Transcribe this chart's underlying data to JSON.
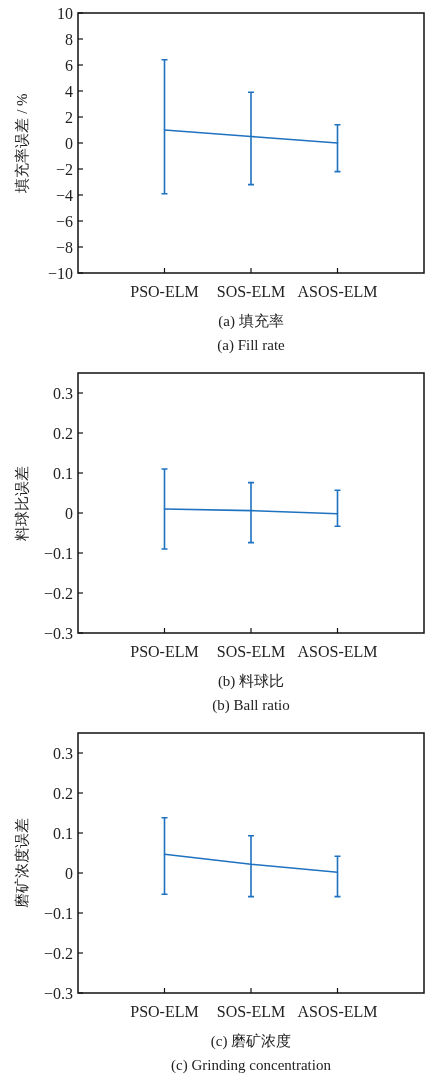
{
  "chart_data": [
    {
      "type": "line",
      "title": "(a)  填充率",
      "subtitle": "(a)  Fill rate",
      "ylabel": "填充率误差 / %",
      "categories": [
        "PSO-ELM",
        "SOS-ELM",
        "ASOS-ELM"
      ],
      "series": [
        {
          "color": "#1f72c0",
          "values": [
            1,
            0.5,
            0
          ],
          "errors": [
            [
              -3.9,
              6.4
            ],
            [
              -3.2,
              3.9
            ],
            [
              -2.2,
              1.4
            ]
          ]
        }
      ],
      "ylim": [
        -10,
        10
      ],
      "yticks": [
        -10,
        -8,
        -6,
        -4,
        -2,
        0,
        2,
        4,
        6,
        8,
        10
      ]
    },
    {
      "type": "line",
      "title": "(b)  料球比",
      "subtitle": "(b)  Ball ratio",
      "ylabel": "料球比误差",
      "categories": [
        "PSO-ELM",
        "SOS-ELM",
        "ASOS-ELM"
      ],
      "series": [
        {
          "color": "#1f72c0",
          "values": [
            0.01,
            0.006,
            -0.002
          ],
          "errors": [
            [
              -0.09,
              0.11
            ],
            [
              -0.074,
              0.076
            ],
            [
              -0.033,
              0.057
            ]
          ]
        }
      ],
      "ylim": [
        -0.3,
        0.35
      ],
      "yticks": [
        -0.3,
        -0.2,
        -0.1,
        0,
        0.1,
        0.2,
        0.3
      ]
    },
    {
      "type": "line",
      "title": "(c)  磨矿浓度",
      "subtitle": "(c)  Grinding concentration",
      "ylabel": "磨矿浓度误差",
      "categories": [
        "PSO-ELM",
        "SOS-ELM",
        "ASOS-ELM"
      ],
      "series": [
        {
          "color": "#1f72c0",
          "values": [
            0.047,
            0.022,
            0.002
          ],
          "errors": [
            [
              -0.053,
              0.138
            ],
            [
              -0.059,
              0.093
            ],
            [
              -0.059,
              0.042
            ]
          ]
        }
      ],
      "ylim": [
        -0.3,
        0.35
      ],
      "yticks": [
        -0.3,
        -0.2,
        -0.1,
        0,
        0.1,
        0.2,
        0.3
      ]
    }
  ]
}
